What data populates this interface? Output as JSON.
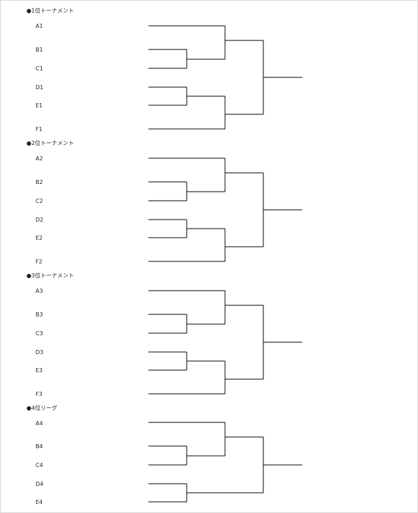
{
  "sections": [
    {
      "title": "●1位トーナメント",
      "players": [
        "A1",
        "B1",
        "C1",
        "D1",
        "E1",
        "F1"
      ]
    },
    {
      "title": "●2位トーナメント",
      "players": [
        "A2",
        "B2",
        "C2",
        "D2",
        "E2",
        "F2"
      ]
    },
    {
      "title": "●3位トーナメント",
      "players": [
        "A3",
        "B3",
        "C3",
        "D3",
        "E3",
        "F3"
      ]
    },
    {
      "title": "●4位リーグ",
      "players": [
        "A4",
        "B4",
        "C4",
        "D4",
        "E4"
      ]
    }
  ]
}
